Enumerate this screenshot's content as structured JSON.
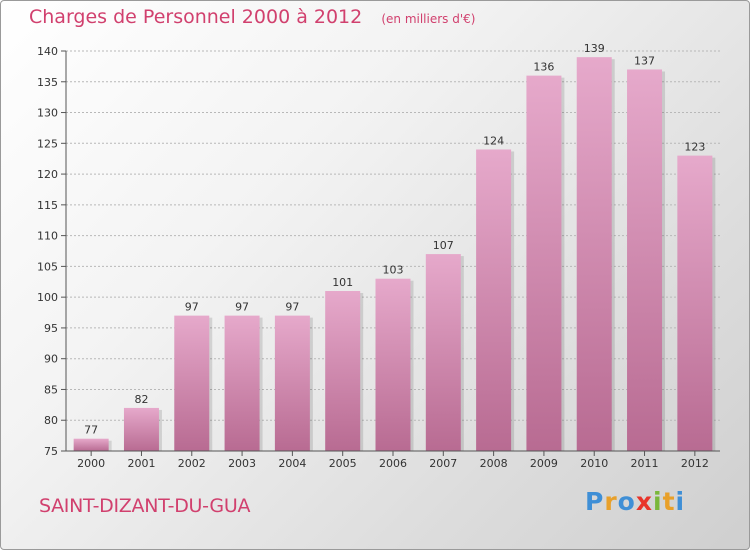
{
  "header": {
    "title": "Charges de Personnel 2000 à 2012",
    "unit": "(en milliers d'€)"
  },
  "footer": {
    "town": "SAINT-DIZANT-DU-GUA",
    "logo_text": "Proxiti"
  },
  "colors": {
    "bar": "#c9709c",
    "bar_light": "#e6a9cb",
    "title": "#d1406e",
    "grid": "#b8b8b8",
    "logo": [
      "#3f8fd6",
      "#e8a02a",
      "#3f8fd6",
      "#e8342a",
      "#7ab73a",
      "#e8a02a",
      "#3f8fd6"
    ]
  },
  "chart_data": {
    "type": "bar",
    "categories": [
      "2000",
      "2001",
      "2002",
      "2003",
      "2004",
      "2005",
      "2006",
      "2007",
      "2008",
      "2009",
      "2010",
      "2011",
      "2012"
    ],
    "values": [
      77,
      82,
      97,
      97,
      97,
      101,
      103,
      107,
      124,
      136,
      139,
      137,
      123
    ],
    "value_labels": [
      "77",
      "82",
      "97",
      "97",
      "97",
      "101",
      "103",
      "107",
      "124",
      "136",
      "139",
      "137",
      "123"
    ],
    "title": "Charges de Personnel 2000 à 2012",
    "ylim": [
      75,
      140
    ],
    "yticks": [
      75,
      80,
      85,
      90,
      95,
      100,
      105,
      110,
      115,
      120,
      125,
      130,
      135,
      140
    ],
    "ytick_labels": [
      "75",
      "80",
      "85",
      "90",
      "95",
      "100",
      "105",
      "110",
      "115",
      "120",
      "125",
      "130",
      "135",
      "140"
    ],
    "grid": true,
    "legend": "none"
  }
}
